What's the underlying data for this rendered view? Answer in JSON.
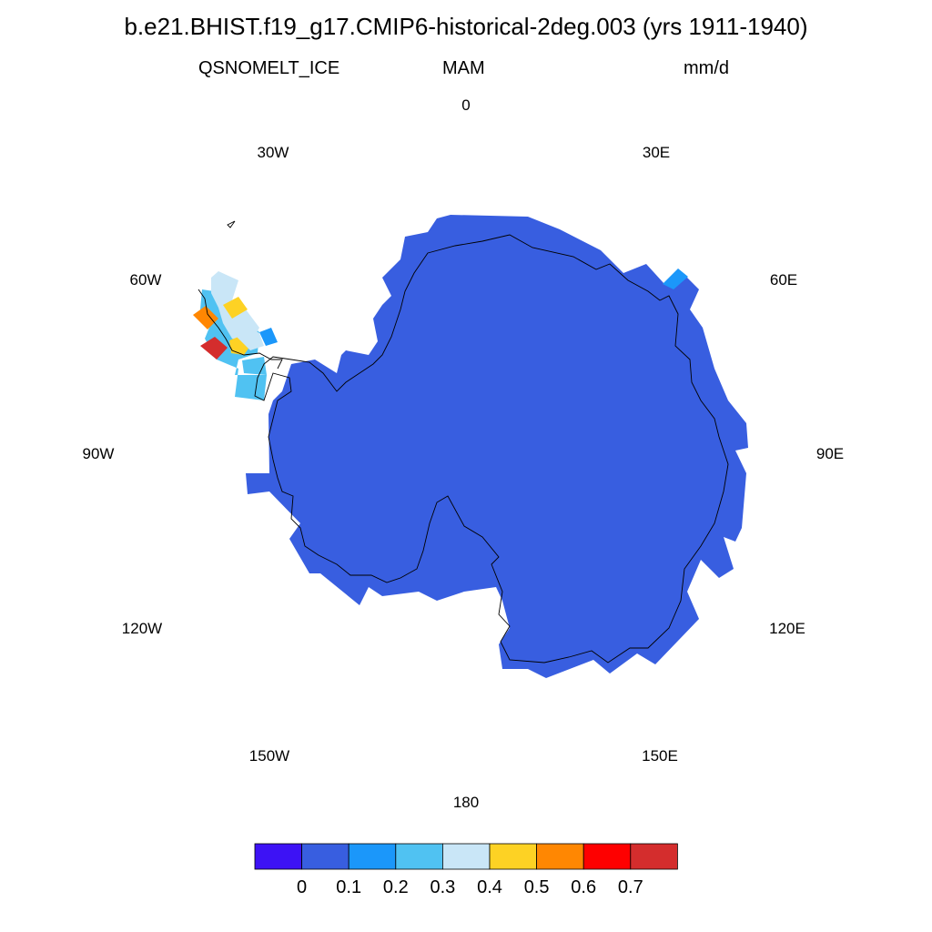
{
  "title": "b.e21.BHIST.f19_g17.CMIP6-historical-2deg.003 (yrs 1911-1940)",
  "left_subtitle": "QSNOMELT_ICE",
  "center_subtitle": "MAM",
  "right_subtitle": "mm/d",
  "longitude_labels": {
    "deg_0": "0",
    "deg_30E": "30E",
    "deg_60E": "60E",
    "deg_90E": "90E",
    "deg_120E": "120E",
    "deg_150E": "150E",
    "deg_180": "180",
    "deg_150W": "150W",
    "deg_120W": "120W",
    "deg_90W": "90W",
    "deg_60W": "60W",
    "deg_30W": "30W"
  },
  "colorbar": {
    "colors": [
      "#3d12f5",
      "#385ee0",
      "#1b97fa",
      "#50c2f2",
      "#c9e6f7",
      "#fdd224",
      "#ff8702",
      "#fe0000",
      "#d42d2d"
    ],
    "labels": [
      "0",
      "0.1",
      "0.2",
      "0.3",
      "0.4",
      "0.5",
      "0.6",
      "0.7"
    ]
  },
  "chart_data": {
    "type": "heatmap",
    "projection": "south polar stereographic",
    "variable": "QSNOMELT_ICE",
    "season": "MAM",
    "units": "mm/d",
    "levels": [
      0,
      0.1,
      0.2,
      0.3,
      0.4,
      0.5,
      0.6,
      0.7
    ],
    "dominant_range": "0-0.1 mm/d over most of the Antarctic ice sheet",
    "antarctic_peninsula_cells": [
      {
        "range": "0.2-0.3"
      },
      {
        "range": "0.3-0.4"
      },
      {
        "range": "0.4-0.5"
      },
      {
        "range": "0.5-0.6"
      },
      {
        "range": "0.7+"
      },
      {
        "range": "0.1-0.2"
      }
    ],
    "east_antarctica_coast_cell": {
      "range": "0.1-0.2"
    }
  }
}
